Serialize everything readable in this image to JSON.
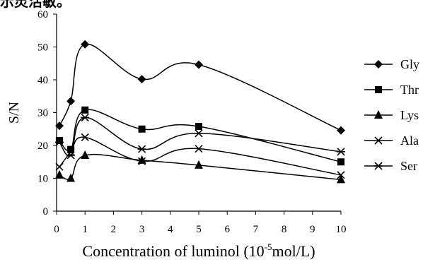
{
  "top_fragment": "示灵活敏。",
  "chart_data": {
    "type": "line",
    "title": "",
    "xlabel": "Concentration of luminol (10",
    "xlabel_sup": "-5",
    "xlabel_tail": "mol/L)",
    "ylabel": "S/N",
    "xlim": [
      0,
      10
    ],
    "ylim": [
      0,
      60
    ],
    "xticks": [
      0,
      1,
      2,
      3,
      4,
      5,
      6,
      7,
      8,
      9,
      10
    ],
    "yticks": [
      0,
      10,
      20,
      30,
      40,
      50,
      60
    ],
    "grid": false,
    "legend_position": "right",
    "series": [
      {
        "name": "Gly",
        "marker": "diamond",
        "x": [
          0.1,
          0.5,
          1,
          3,
          5,
          10
        ],
        "values": [
          26,
          33.5,
          50.8,
          40.2,
          44.6,
          24.6
        ]
      },
      {
        "name": "Thr",
        "marker": "square",
        "x": [
          0.1,
          0.5,
          1,
          3,
          5,
          10
        ],
        "values": [
          21.5,
          18.8,
          30.8,
          25,
          25.8,
          15
        ]
      },
      {
        "name": "Lys",
        "marker": "triangle",
        "x": [
          0.1,
          0.5,
          1,
          3,
          5,
          10
        ],
        "values": [
          11,
          10,
          17,
          15.5,
          14,
          9.6
        ]
      },
      {
        "name": "Ala",
        "marker": "x",
        "x": [
          0.1,
          0.5,
          1,
          3,
          5,
          10
        ],
        "values": [
          13.5,
          18,
          22.5,
          15.2,
          19,
          11
        ]
      },
      {
        "name": "Ser",
        "marker": "star",
        "x": [
          0.1,
          0.5,
          1,
          3,
          5,
          10
        ],
        "values": [
          21,
          17,
          28.5,
          18.9,
          23.7,
          18.1
        ]
      }
    ]
  }
}
